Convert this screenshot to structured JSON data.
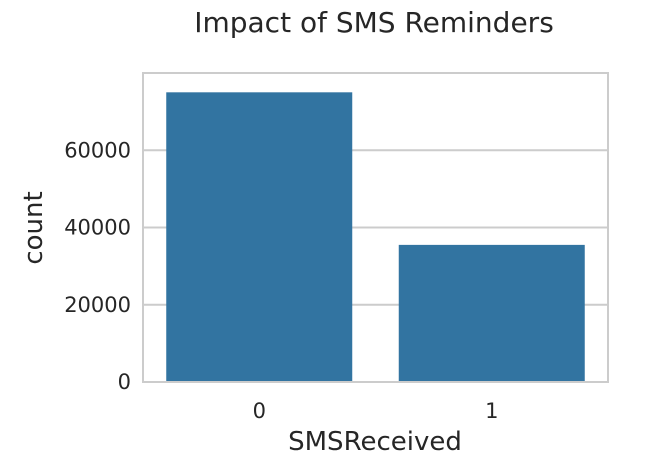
{
  "chart_data": {
    "type": "bar",
    "title": "Impact of SMS Reminders",
    "xlabel": "SMSReceived",
    "ylabel": "count",
    "categories": [
      "0",
      "1"
    ],
    "values": [
      75000,
      35500
    ],
    "ylim": [
      0,
      80000
    ],
    "yticks": [
      0,
      20000,
      40000,
      60000
    ],
    "ytick_labels": [
      "0",
      "20000",
      "40000",
      "60000"
    ],
    "grid": true,
    "legend": "none",
    "bar_color": "#3274a1"
  }
}
